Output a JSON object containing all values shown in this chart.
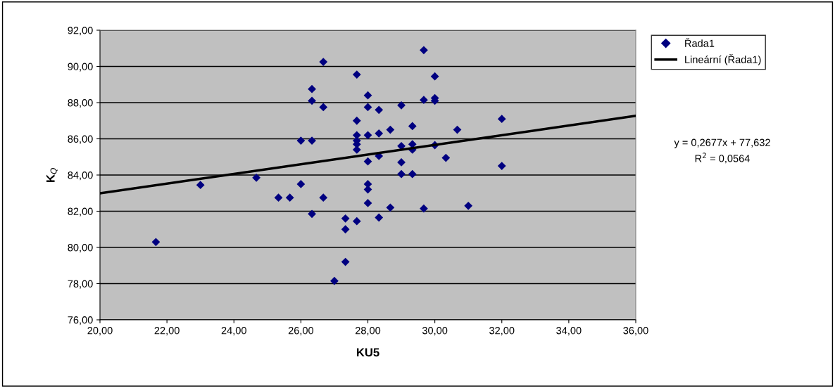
{
  "chart_data": {
    "type": "scatter",
    "xlabel": "KU5",
    "ylabel": "K$_{Q}$",
    "xlim": [
      20,
      36
    ],
    "ylim": [
      76,
      92
    ],
    "xticks": [
      {
        "value": 20,
        "label": "20,00"
      },
      {
        "value": 22,
        "label": "22,00"
      },
      {
        "value": 24,
        "label": "24,00"
      },
      {
        "value": 26,
        "label": "26,00"
      },
      {
        "value": 28,
        "label": "28,00"
      },
      {
        "value": 30,
        "label": "30,00"
      },
      {
        "value": 32,
        "label": "32,00"
      },
      {
        "value": 34,
        "label": "34,00"
      },
      {
        "value": 36,
        "label": "36,00"
      }
    ],
    "yticks": [
      {
        "value": 76,
        "label": "76,00"
      },
      {
        "value": 78,
        "label": "78,00"
      },
      {
        "value": 80,
        "label": "80,00"
      },
      {
        "value": 82,
        "label": "82,00"
      },
      {
        "value": 84,
        "label": "84,00"
      },
      {
        "value": 86,
        "label": "86,00"
      },
      {
        "value": 88,
        "label": "88,00"
      },
      {
        "value": 90,
        "label": "90,00"
      },
      {
        "value": 92,
        "label": "92,00"
      }
    ],
    "grid": "y",
    "legend": "top right",
    "series": [
      {
        "name": "Řada1",
        "marker": "diamond",
        "color": "#000080",
        "x": [
          21.67,
          23.0,
          24.67,
          25.33,
          25.67,
          26.0,
          26.0,
          26.33,
          26.33,
          26.33,
          26.33,
          26.67,
          26.67,
          26.67,
          27.0,
          27.33,
          27.33,
          27.33,
          27.67,
          27.67,
          27.67,
          27.67,
          27.67,
          27.67,
          27.67,
          28.0,
          28.0,
          28.0,
          28.0,
          28.0,
          28.0,
          28.0,
          28.33,
          28.33,
          28.33,
          28.33,
          28.67,
          28.67,
          29.0,
          29.0,
          29.0,
          29.0,
          29.33,
          29.33,
          29.33,
          29.33,
          29.67,
          29.67,
          29.67,
          30.0,
          30.0,
          30.0,
          30.0,
          30.33,
          30.67,
          31.0,
          32.0,
          32.0
        ],
        "values": [
          80.3,
          83.45,
          83.85,
          82.75,
          82.75,
          83.5,
          85.9,
          85.9,
          88.1,
          88.75,
          81.85,
          90.25,
          87.75,
          82.75,
          78.15,
          81.6,
          81.0,
          79.2,
          89.55,
          87.0,
          86.2,
          85.9,
          85.7,
          85.4,
          81.45,
          88.4,
          87.75,
          86.2,
          84.75,
          83.5,
          83.2,
          82.45,
          87.6,
          86.3,
          85.05,
          81.65,
          86.5,
          82.2,
          87.85,
          85.6,
          84.7,
          84.05,
          86.7,
          85.7,
          85.4,
          84.05,
          90.9,
          88.15,
          82.15,
          89.45,
          88.25,
          88.1,
          85.65,
          84.95,
          86.5,
          82.3,
          87.1,
          84.5
        ]
      },
      {
        "name": "Lineární (Řada1)",
        "type": "line",
        "line_style": "solid",
        "color": "#000000",
        "x": [
          20,
          36
        ],
        "values": [
          82.99,
          87.27
        ]
      }
    ],
    "annotations": [
      "y = 0,2677x + 77,632",
      "R$^{2}$ = 0,0564"
    ]
  }
}
